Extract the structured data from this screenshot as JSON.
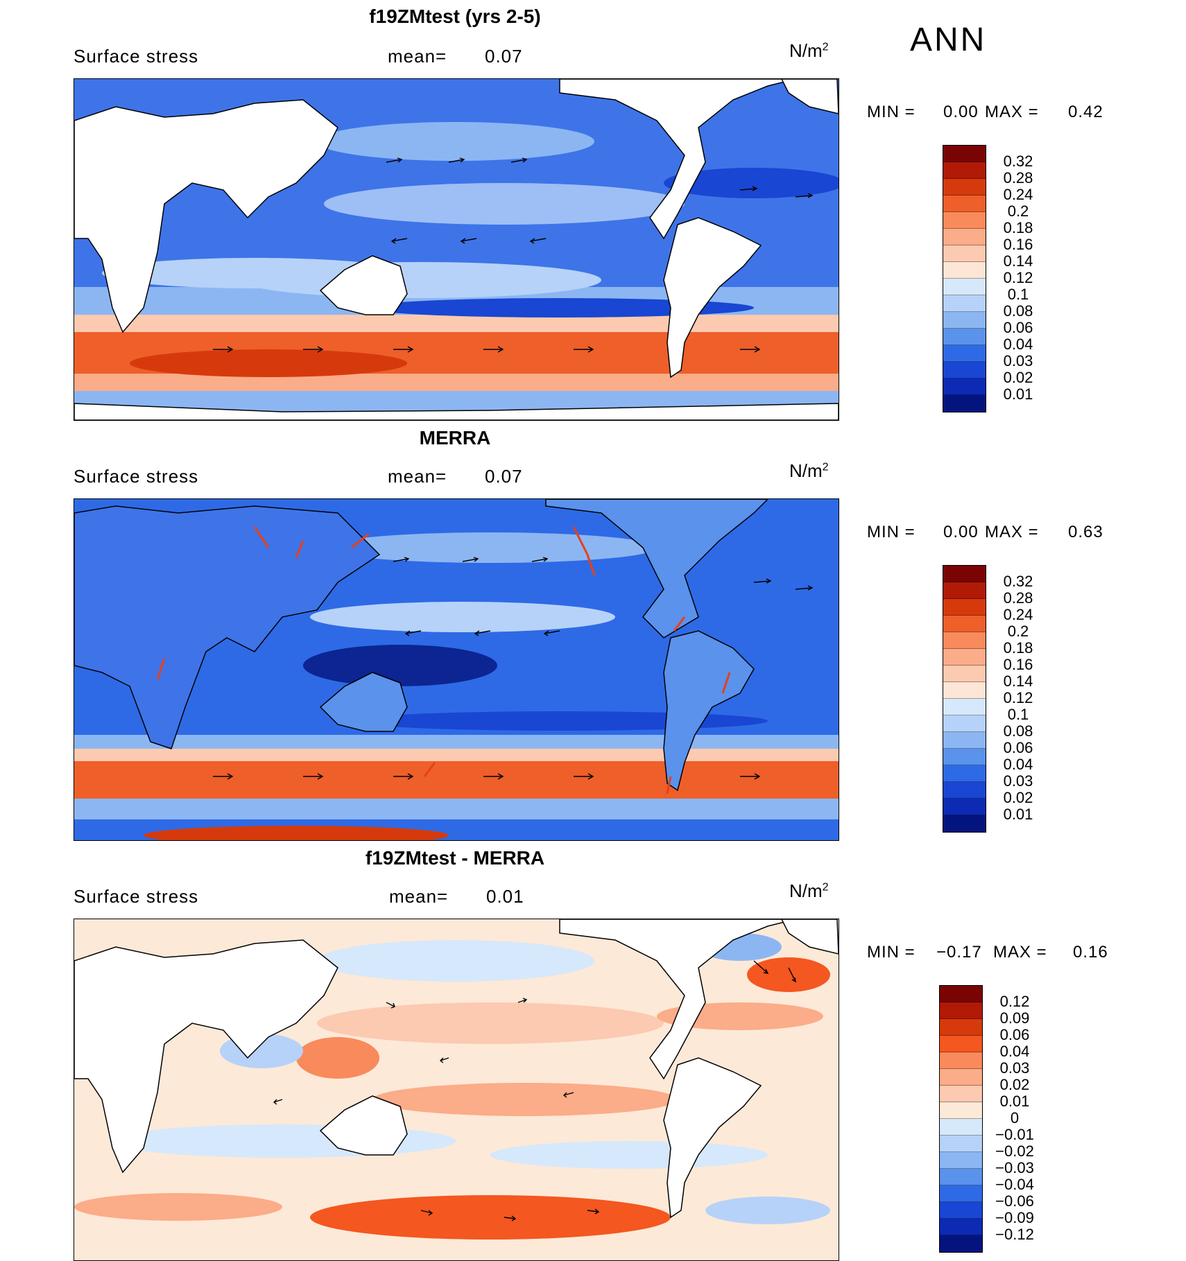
{
  "season": "ANN",
  "panels": [
    {
      "title": "f19ZMtest (yrs 2-5)",
      "variable": "Surface stress",
      "mean_label": "mean=",
      "mean_value": "0.07",
      "units": "N/m",
      "units_exp": "2",
      "min_label": "MIN =",
      "min_value": "0.00",
      "max_label": "MAX =",
      "max_value": "0.42",
      "colorbar": {
        "labels": [
          "0.32",
          "0.28",
          "0.24",
          "0.2",
          "0.18",
          "0.16",
          "0.14",
          "0.12",
          "0.1",
          "0.08",
          "0.06",
          "0.04",
          "0.03",
          "0.02",
          "0.01"
        ],
        "colors": [
          "#7a0403",
          "#b01a06",
          "#d63a0c",
          "#ee5f2a",
          "#f98a5c",
          "#fbac88",
          "#fccab0",
          "#fde6d6",
          "#d6e8fb",
          "#b6d2f8",
          "#8cb6f2",
          "#5a92ec",
          "#2e6ae6",
          "#1946d2",
          "#0c2ab4",
          "#04147e"
        ]
      }
    },
    {
      "title": "MERRA",
      "variable": "Surface stress",
      "mean_label": "mean=",
      "mean_value": "0.07",
      "units": "N/m",
      "units_exp": "2",
      "min_label": "MIN =",
      "min_value": "0.00",
      "max_label": "MAX =",
      "max_value": "0.63",
      "colorbar": {
        "labels": [
          "0.32",
          "0.28",
          "0.24",
          "0.2",
          "0.18",
          "0.16",
          "0.14",
          "0.12",
          "0.1",
          "0.08",
          "0.06",
          "0.04",
          "0.03",
          "0.02",
          "0.01"
        ],
        "colors": [
          "#7a0403",
          "#b01a06",
          "#d63a0c",
          "#ee5f2a",
          "#f98a5c",
          "#fbac88",
          "#fccab0",
          "#fde6d6",
          "#d6e8fb",
          "#b6d2f8",
          "#8cb6f2",
          "#5a92ec",
          "#2e6ae6",
          "#1946d2",
          "#0c2ab4",
          "#04147e"
        ]
      }
    },
    {
      "title": "f19ZMtest - MERRA",
      "variable": "Surface stress",
      "mean_label": "mean=",
      "mean_value": "0.01",
      "units": "N/m",
      "units_exp": "2",
      "min_label": "MIN =",
      "min_value": "−0.17",
      "max_label": "MAX =",
      "max_value": "0.16",
      "colorbar": {
        "labels": [
          "0.12",
          "0.09",
          "0.06",
          "0.04",
          "0.03",
          "0.02",
          "0.01",
          "0",
          "−0.01",
          "−0.02",
          "−0.03",
          "−0.04",
          "−0.06",
          "−0.09",
          "−0.12"
        ],
        "colors": [
          "#7a0403",
          "#b01a06",
          "#d63a0c",
          "#f4571f",
          "#f98a5c",
          "#fbac88",
          "#fccab0",
          "#fde9d8",
          "#d6e8fb",
          "#b6d2f8",
          "#8cb6f2",
          "#5a92ec",
          "#2e6ae6",
          "#1946d2",
          "#0c2ab4",
          "#04147e"
        ]
      }
    }
  ]
}
